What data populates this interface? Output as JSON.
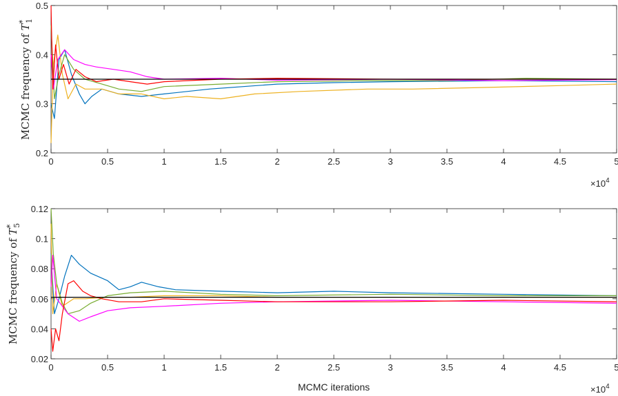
{
  "chart_data": [
    {
      "type": "line",
      "ylabel_text": "MCMC frequency of ",
      "ylabel_sym": "T",
      "ylabel_sup": "*",
      "ylabel_sub": "1",
      "xlabel": "",
      "xlim": [
        0,
        50000
      ],
      "ylim": [
        0.2,
        0.5
      ],
      "x_multiplier": "×10",
      "x_multiplier_exp": "4",
      "x_tick_labels": [
        "0",
        "0.5",
        "1",
        "1.5",
        "2",
        "2.5",
        "3",
        "3.5",
        "4",
        "4.5",
        "5"
      ],
      "y_tick_labels": [
        "0.2",
        "0.3",
        "0.4",
        "0.5"
      ],
      "reference_value": 0.35,
      "series_colors": [
        "#0072BD",
        "#D95319",
        "#EDB120",
        "#7E2F8E",
        "#77AC30",
        "#FF00FF",
        "#FF0000"
      ],
      "series": [
        {
          "color": "#0072BD",
          "points": [
            [
              0,
              0.3
            ],
            [
              300,
              0.27
            ],
            [
              700,
              0.39
            ],
            [
              1200,
              0.41
            ],
            [
              1800,
              0.36
            ],
            [
              2500,
              0.32
            ],
            [
              3000,
              0.3
            ],
            [
              3600,
              0.315
            ],
            [
              4500,
              0.33
            ],
            [
              6000,
              0.32
            ],
            [
              8000,
              0.315
            ],
            [
              10000,
              0.32
            ],
            [
              14000,
              0.33
            ],
            [
              20000,
              0.34
            ],
            [
              25000,
              0.343
            ],
            [
              30000,
              0.345
            ],
            [
              40000,
              0.347
            ],
            [
              50000,
              0.345
            ]
          ]
        },
        {
          "color": "#EDB120",
          "points": [
            [
              0,
              0.22
            ],
            [
              200,
              0.38
            ],
            [
              600,
              0.44
            ],
            [
              1000,
              0.36
            ],
            [
              1500,
              0.31
            ],
            [
              2200,
              0.34
            ],
            [
              3000,
              0.33
            ],
            [
              4500,
              0.33
            ],
            [
              6000,
              0.32
            ],
            [
              8000,
              0.32
            ],
            [
              10000,
              0.31
            ],
            [
              12000,
              0.315
            ],
            [
              15000,
              0.31
            ],
            [
              18000,
              0.32
            ],
            [
              22000,
              0.325
            ],
            [
              28000,
              0.33
            ],
            [
              32000,
              0.33
            ],
            [
              38000,
              0.333
            ],
            [
              45000,
              0.337
            ],
            [
              50000,
              0.34
            ]
          ]
        },
        {
          "color": "#77AC30",
          "points": [
            [
              0,
              0.46
            ],
            [
              300,
              0.31
            ],
            [
              700,
              0.36
            ],
            [
              1200,
              0.4
            ],
            [
              2000,
              0.37
            ],
            [
              3000,
              0.35
            ],
            [
              4500,
              0.34
            ],
            [
              6000,
              0.33
            ],
            [
              8000,
              0.325
            ],
            [
              10000,
              0.335
            ],
            [
              15000,
              0.34
            ],
            [
              20000,
              0.345
            ],
            [
              28000,
              0.347
            ],
            [
              35000,
              0.347
            ],
            [
              42000,
              0.352
            ],
            [
              50000,
              0.35
            ]
          ]
        },
        {
          "color": "#FF00FF",
          "points": [
            [
              0,
              0.4
            ],
            [
              200,
              0.33
            ],
            [
              600,
              0.39
            ],
            [
              1200,
              0.41
            ],
            [
              2000,
              0.39
            ],
            [
              3000,
              0.38
            ],
            [
              4000,
              0.375
            ],
            [
              5500,
              0.37
            ],
            [
              7000,
              0.365
            ],
            [
              8500,
              0.355
            ],
            [
              10000,
              0.35
            ],
            [
              15000,
              0.352
            ],
            [
              20000,
              0.348
            ],
            [
              30000,
              0.35
            ],
            [
              40000,
              0.347
            ],
            [
              50000,
              0.349
            ]
          ]
        },
        {
          "color": "#FF0000",
          "points": [
            [
              0,
              0.5
            ],
            [
              150,
              0.33
            ],
            [
              400,
              0.42
            ],
            [
              700,
              0.35
            ],
            [
              1100,
              0.38
            ],
            [
              1600,
              0.34
            ],
            [
              2200,
              0.37
            ],
            [
              3000,
              0.355
            ],
            [
              4000,
              0.345
            ],
            [
              5500,
              0.35
            ],
            [
              7000,
              0.345
            ],
            [
              8500,
              0.34
            ],
            [
              10000,
              0.345
            ],
            [
              15000,
              0.35
            ],
            [
              20000,
              0.352
            ],
            [
              30000,
              0.35
            ],
            [
              40000,
              0.35
            ],
            [
              50000,
              0.35
            ]
          ]
        }
      ]
    },
    {
      "type": "line",
      "ylabel_text": "MCMC frequency of ",
      "ylabel_sym": "T",
      "ylabel_sup": "*",
      "ylabel_sub": "5",
      "xlabel": "MCMC iterations",
      "xlim": [
        0,
        50000
      ],
      "ylim": [
        0.02,
        0.12
      ],
      "x_multiplier": "×10",
      "x_multiplier_exp": "4",
      "x_tick_labels": [
        "0",
        "0.5",
        "1",
        "1.5",
        "2",
        "2.5",
        "3",
        "3.5",
        "4",
        "4.5",
        "5"
      ],
      "y_tick_labels": [
        "0.02",
        "0.04",
        "0.06",
        "0.08",
        "0.1",
        "0.12"
      ],
      "reference_value": 0.061,
      "series": [
        {
          "color": "#0072BD",
          "points": [
            [
              0,
              0.09
            ],
            [
              300,
              0.05
            ],
            [
              700,
              0.06
            ],
            [
              1200,
              0.075
            ],
            [
              1800,
              0.089
            ],
            [
              2500,
              0.083
            ],
            [
              3500,
              0.077
            ],
            [
              5000,
              0.072
            ],
            [
              6000,
              0.066
            ],
            [
              7000,
              0.068
            ],
            [
              8000,
              0.071
            ],
            [
              9500,
              0.068
            ],
            [
              11000,
              0.066
            ],
            [
              15000,
              0.065
            ],
            [
              20000,
              0.064
            ],
            [
              25000,
              0.065
            ],
            [
              30000,
              0.064
            ],
            [
              40000,
              0.063
            ],
            [
              50000,
              0.062
            ]
          ]
        },
        {
          "color": "#EDB120",
          "points": [
            [
              0,
              0.11
            ],
            [
              150,
              0.05
            ],
            [
              500,
              0.07
            ],
            [
              1000,
              0.055
            ],
            [
              2000,
              0.06
            ],
            [
              3000,
              0.06
            ],
            [
              5000,
              0.061
            ],
            [
              7000,
              0.061
            ],
            [
              10000,
              0.062
            ],
            [
              15000,
              0.062
            ],
            [
              20000,
              0.061
            ],
            [
              30000,
              0.061
            ],
            [
              40000,
              0.061
            ],
            [
              50000,
              0.061
            ]
          ]
        },
        {
          "color": "#77AC30",
          "points": [
            [
              0,
              0.12
            ],
            [
              200,
              0.09
            ],
            [
              500,
              0.07
            ],
            [
              1000,
              0.057
            ],
            [
              1500,
              0.05
            ],
            [
              2500,
              0.052
            ],
            [
              3500,
              0.057
            ],
            [
              5000,
              0.062
            ],
            [
              7000,
              0.064
            ],
            [
              10000,
              0.065
            ],
            [
              15000,
              0.063
            ],
            [
              20000,
              0.062
            ],
            [
              30000,
              0.063
            ],
            [
              40000,
              0.062
            ],
            [
              50000,
              0.062
            ]
          ]
        },
        {
          "color": "#FF00FF",
          "points": [
            [
              0,
              0.068
            ],
            [
              150,
              0.089
            ],
            [
              500,
              0.06
            ],
            [
              1000,
              0.055
            ],
            [
              1500,
              0.05
            ],
            [
              2500,
              0.045
            ],
            [
              3500,
              0.048
            ],
            [
              5000,
              0.052
            ],
            [
              7000,
              0.054
            ],
            [
              10000,
              0.055
            ],
            [
              15000,
              0.057
            ],
            [
              20000,
              0.058
            ],
            [
              30000,
              0.059
            ],
            [
              40000,
              0.058
            ],
            [
              50000,
              0.057
            ]
          ]
        },
        {
          "color": "#FF0000",
          "points": [
            [
              0,
              0.04
            ],
            [
              150,
              0.025
            ],
            [
              400,
              0.04
            ],
            [
              700,
              0.032
            ],
            [
              1000,
              0.05
            ],
            [
              1500,
              0.07
            ],
            [
              2000,
              0.072
            ],
            [
              2800,
              0.065
            ],
            [
              3500,
              0.062
            ],
            [
              4500,
              0.06
            ],
            [
              6000,
              0.058
            ],
            [
              8000,
              0.058
            ],
            [
              10000,
              0.06
            ],
            [
              15000,
              0.059
            ],
            [
              20000,
              0.058
            ],
            [
              30000,
              0.058
            ],
            [
              40000,
              0.059
            ],
            [
              50000,
              0.058
            ]
          ]
        }
      ]
    }
  ]
}
